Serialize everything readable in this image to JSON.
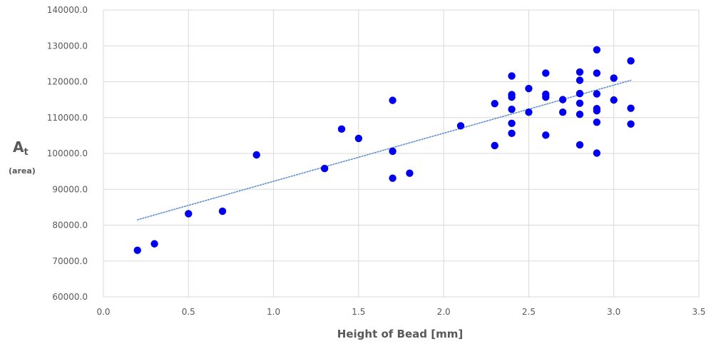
{
  "chart_data": {
    "type": "scatter",
    "title": "",
    "xlabel": "Height of Bead [mm]",
    "ylabel": {
      "main": "A",
      "subscript": "t",
      "unit": "(area)"
    },
    "xlim": [
      0.0,
      3.5
    ],
    "ylim": [
      60000,
      140000
    ],
    "x_ticks": [
      "0.0",
      "0.5",
      "1.0",
      "1.5",
      "2.0",
      "2.5",
      "3.0",
      "3.5"
    ],
    "x_tick_values": [
      0.0,
      0.5,
      1.0,
      1.5,
      2.0,
      2.5,
      3.0,
      3.5
    ],
    "y_ticks": [
      "60000.0",
      "70000.0",
      "80000.0",
      "90000.0",
      "100000.0",
      "110000.0",
      "120000.0",
      "130000.0",
      "140000.0"
    ],
    "y_tick_values": [
      60000,
      70000,
      80000,
      90000,
      100000,
      110000,
      120000,
      130000,
      140000
    ],
    "grid": true,
    "marker_color": "#0000ee",
    "trendline": {
      "type": "linear",
      "color": "#5b8fd0",
      "style": "dotted",
      "x_range": [
        0.2,
        3.1
      ],
      "y_range": [
        81500,
        120400
      ]
    },
    "series": [
      {
        "points": [
          [
            0.2,
            73000
          ],
          [
            0.3,
            74800
          ],
          [
            0.5,
            83200
          ],
          [
            0.7,
            83900
          ],
          [
            0.9,
            99600
          ],
          [
            1.3,
            95800
          ],
          [
            1.4,
            106800
          ],
          [
            1.5,
            104200
          ],
          [
            1.7,
            114800
          ],
          [
            1.7,
            100600
          ],
          [
            1.7,
            93100
          ],
          [
            1.8,
            94500
          ],
          [
            2.1,
            107700
          ],
          [
            2.3,
            113900
          ],
          [
            2.3,
            102200
          ],
          [
            2.4,
            121600
          ],
          [
            2.4,
            116400
          ],
          [
            2.4,
            115700
          ],
          [
            2.4,
            112300
          ],
          [
            2.4,
            108400
          ],
          [
            2.4,
            105600
          ],
          [
            2.5,
            118100
          ],
          [
            2.5,
            111500
          ],
          [
            2.6,
            122400
          ],
          [
            2.6,
            116500
          ],
          [
            2.6,
            115700
          ],
          [
            2.6,
            105100
          ],
          [
            2.7,
            115000
          ],
          [
            2.7,
            111500
          ],
          [
            2.8,
            122700
          ],
          [
            2.8,
            120400
          ],
          [
            2.8,
            116700
          ],
          [
            2.8,
            114000
          ],
          [
            2.8,
            110900
          ],
          [
            2.8,
            102400
          ],
          [
            2.9,
            128900
          ],
          [
            2.9,
            122400
          ],
          [
            2.9,
            116600
          ],
          [
            2.9,
            112500
          ],
          [
            2.9,
            111900
          ],
          [
            2.9,
            108700
          ],
          [
            2.9,
            100100
          ],
          [
            3.0,
            121000
          ],
          [
            3.0,
            114900
          ],
          [
            3.1,
            125800
          ],
          [
            3.1,
            112600
          ],
          [
            3.1,
            108200
          ]
        ]
      }
    ]
  }
}
